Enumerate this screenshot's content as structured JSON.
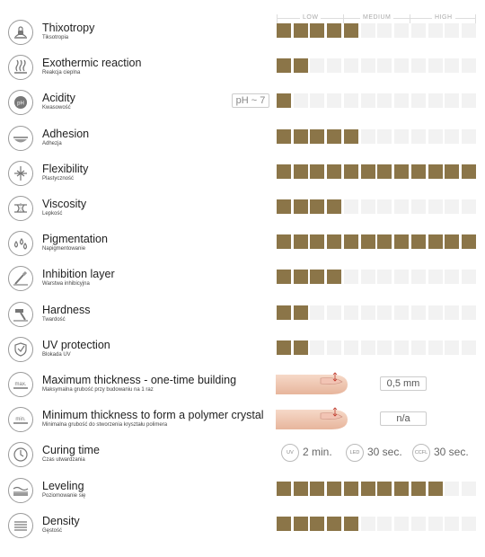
{
  "scale": {
    "low": "LOW",
    "medium": "MEDIUM",
    "high": "HIGH",
    "segments": 12
  },
  "colors": {
    "filled": "#8b7548",
    "empty": "#f2f2f2",
    "border": "#cccccc"
  },
  "rows": [
    {
      "id": "thixotropy",
      "icon": "lock-icon",
      "title": "Thixotropy",
      "subtitle": "Tiksotropia",
      "level": 5
    },
    {
      "id": "exothermic",
      "icon": "heat-icon",
      "title": "Exothermic reaction",
      "subtitle": "Reakcja cieplna",
      "level": 2
    },
    {
      "id": "acidity",
      "icon": "ph-icon",
      "title": "Acidity",
      "subtitle": "Kwasowość",
      "level": 1,
      "badge": "pH ~ 7"
    },
    {
      "id": "adhesion",
      "icon": "adhesion-icon",
      "title": "Adhesion",
      "subtitle": "Adhezja",
      "level": 5
    },
    {
      "id": "flexibility",
      "icon": "flex-icon",
      "title": "Flexibility",
      "subtitle": "Plastyczność",
      "level": 12
    },
    {
      "id": "viscosity",
      "icon": "viscosity-icon",
      "title": "Viscosity",
      "subtitle": "Lepkość",
      "level": 4
    },
    {
      "id": "pigmentation",
      "icon": "drops-icon",
      "title": "Pigmentation",
      "subtitle": "Napigmentowanie",
      "level": 12
    },
    {
      "id": "inhibition",
      "icon": "brush-icon",
      "title": "Inhibition layer",
      "subtitle": "Warstwa inhibicyjna",
      "level": 4
    },
    {
      "id": "hardness",
      "icon": "hammer-icon",
      "title": "Hardness",
      "subtitle": "Twardość",
      "level": 2
    },
    {
      "id": "uv",
      "icon": "uv-shield-icon",
      "title": "UV protection",
      "subtitle": "Blokada UV",
      "level": 2
    },
    {
      "id": "maxthick",
      "icon": "max-thickness-icon",
      "title": "Maximum thickness - one-time building",
      "subtitle": "Maksymalna grubość przy budowaniu na 1 raz",
      "icon_text": "max.",
      "value": "0,5 mm"
    },
    {
      "id": "minthick",
      "icon": "min-thickness-icon",
      "title": "Minimum thickness to form a polymer crystal",
      "subtitle": "Minimalna grubość do stworzenia kryształu polimera",
      "icon_text": "min.",
      "value": "n/a"
    },
    {
      "id": "curing",
      "icon": "clock-icon",
      "title": "Curing time",
      "subtitle": "Czas utwardzania",
      "cure": [
        {
          "lamp": "UV",
          "time": "2 min."
        },
        {
          "lamp": "LED",
          "time": "30 sec."
        },
        {
          "lamp": "CCFL",
          "time": "30 sec."
        }
      ]
    },
    {
      "id": "leveling",
      "icon": "leveling-icon",
      "title": "Leveling",
      "subtitle": "Poziomowanie się",
      "level": 10
    },
    {
      "id": "density",
      "icon": "density-icon",
      "title": "Density",
      "subtitle": "Gęstość",
      "level": 5
    }
  ]
}
